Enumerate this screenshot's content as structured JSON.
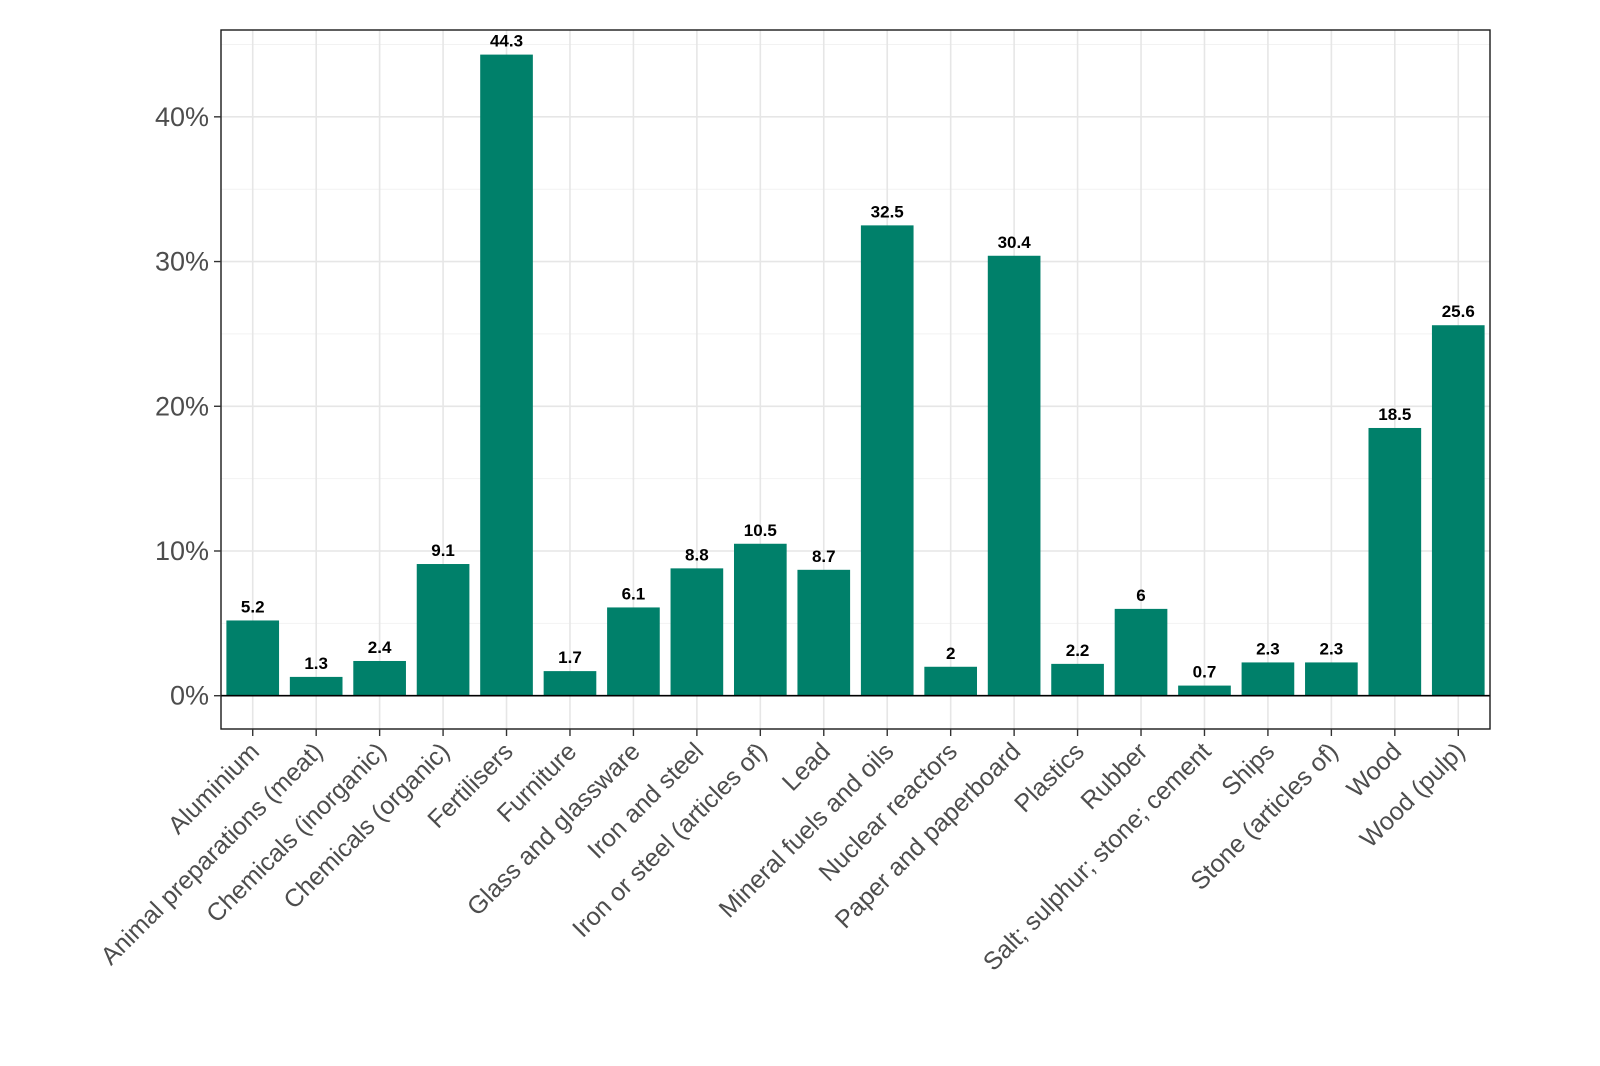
{
  "chart_data": {
    "type": "bar",
    "title": "",
    "xlabel": "",
    "ylabel": "",
    "ylim": [
      -2.3,
      46
    ],
    "yticks": [
      0,
      10,
      20,
      30,
      40
    ],
    "ytick_labels": [
      "0%",
      "10%",
      "20%",
      "30%",
      "40%"
    ],
    "grid": true,
    "bar_color": "#00806A",
    "categories": [
      "Aluminium",
      "Animal preparations (meat)",
      "Chemicals (inorganic)",
      "Chemicals (organic)",
      "Fertilisers",
      "Furniture",
      "Glass and glassware",
      "Iron and steel",
      "Iron or steel (articles of)",
      "Lead",
      "Mineral fuels and oils",
      "Nuclear reactors",
      "Paper and paperboard",
      "Plastics",
      "Rubber",
      "Salt; sulphur; stone; cement",
      "Ships",
      "Stone (articles of)",
      "Wood",
      "Wood (pulp)"
    ],
    "values": [
      5.2,
      1.3,
      2.4,
      9.1,
      44.3,
      1.7,
      6.1,
      8.8,
      10.5,
      8.7,
      32.5,
      2,
      30.4,
      2.2,
      6,
      0.7,
      2.3,
      2.3,
      18.5,
      25.6
    ],
    "data_labels": [
      "5.2",
      "1.3",
      "2.4",
      "9.1",
      "44.3",
      "1.7",
      "6.1",
      "8.8",
      "10.5",
      "8.7",
      "32.5",
      "2",
      "30.4",
      "2.2",
      "6",
      "0.7",
      "2.3",
      "2.3",
      "18.5",
      "25.6"
    ]
  }
}
